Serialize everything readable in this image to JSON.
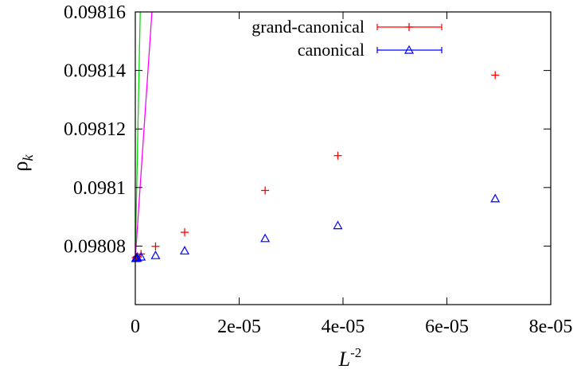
{
  "chart_data": {
    "type": "scatter",
    "xlabel": "L",
    "xlabel_sup": "-2",
    "ylabel": "ρ",
    "ylabel_sub": "k",
    "xlim": [
      0,
      8e-05
    ],
    "ylim": [
      0.09806,
      0.09816
    ],
    "x_ticks": [
      0,
      2e-05,
      4e-05,
      6e-05,
      8e-05
    ],
    "x_tick_labels": [
      "0",
      "2e-05",
      "4e-05",
      "6e-05",
      "8e-05"
    ],
    "y_ticks": [
      0.09808,
      0.0981,
      0.09812,
      0.09814,
      0.09816
    ],
    "y_tick_labels": [
      "0.09808",
      "0.0981",
      "0.09812",
      "0.09814",
      "0.09816"
    ],
    "legend_position": "top-right",
    "grid": false,
    "series": [
      {
        "name": "grand-canonical",
        "marker": "plus",
        "color": "#ff0000",
        "points": [
          {
            "x": 1e-07,
            "y": 0.098076
          },
          {
            "x": 2.5e-07,
            "y": 0.0980763
          },
          {
            "x": 4e-07,
            "y": 0.0980765
          },
          {
            "x": 1.1e-06,
            "y": 0.0980773
          },
          {
            "x": 3.9e-06,
            "y": 0.0980799
          },
          {
            "x": 9.5e-06,
            "y": 0.0980847
          },
          {
            "x": 2.5e-05,
            "y": 0.098099
          },
          {
            "x": 3.9e-05,
            "y": 0.0981109
          },
          {
            "x": 6.93e-05,
            "y": 0.0981384
          }
        ]
      },
      {
        "name": "canonical",
        "marker": "triangle",
        "color": "#0000ff",
        "points": [
          {
            "x": 1e-07,
            "y": 0.0980758
          },
          {
            "x": 2.5e-07,
            "y": 0.0980759
          },
          {
            "x": 4e-07,
            "y": 0.098076
          },
          {
            "x": 1.1e-06,
            "y": 0.0980763
          },
          {
            "x": 3.9e-06,
            "y": 0.0980768
          },
          {
            "x": 9.5e-06,
            "y": 0.0980784
          },
          {
            "x": 2.5e-05,
            "y": 0.0980826
          },
          {
            "x": 3.9e-05,
            "y": 0.098087
          },
          {
            "x": 6.93e-05,
            "y": 0.0980962
          }
        ]
      }
    ],
    "fits": [
      {
        "series": "grand-canonical",
        "color": "#00dd00",
        "intercept": 0.098076,
        "slope": 88.5
      },
      {
        "series": "canonical",
        "color": "#ff00ff",
        "intercept": 0.0980758,
        "slope": 26.3
      }
    ]
  }
}
